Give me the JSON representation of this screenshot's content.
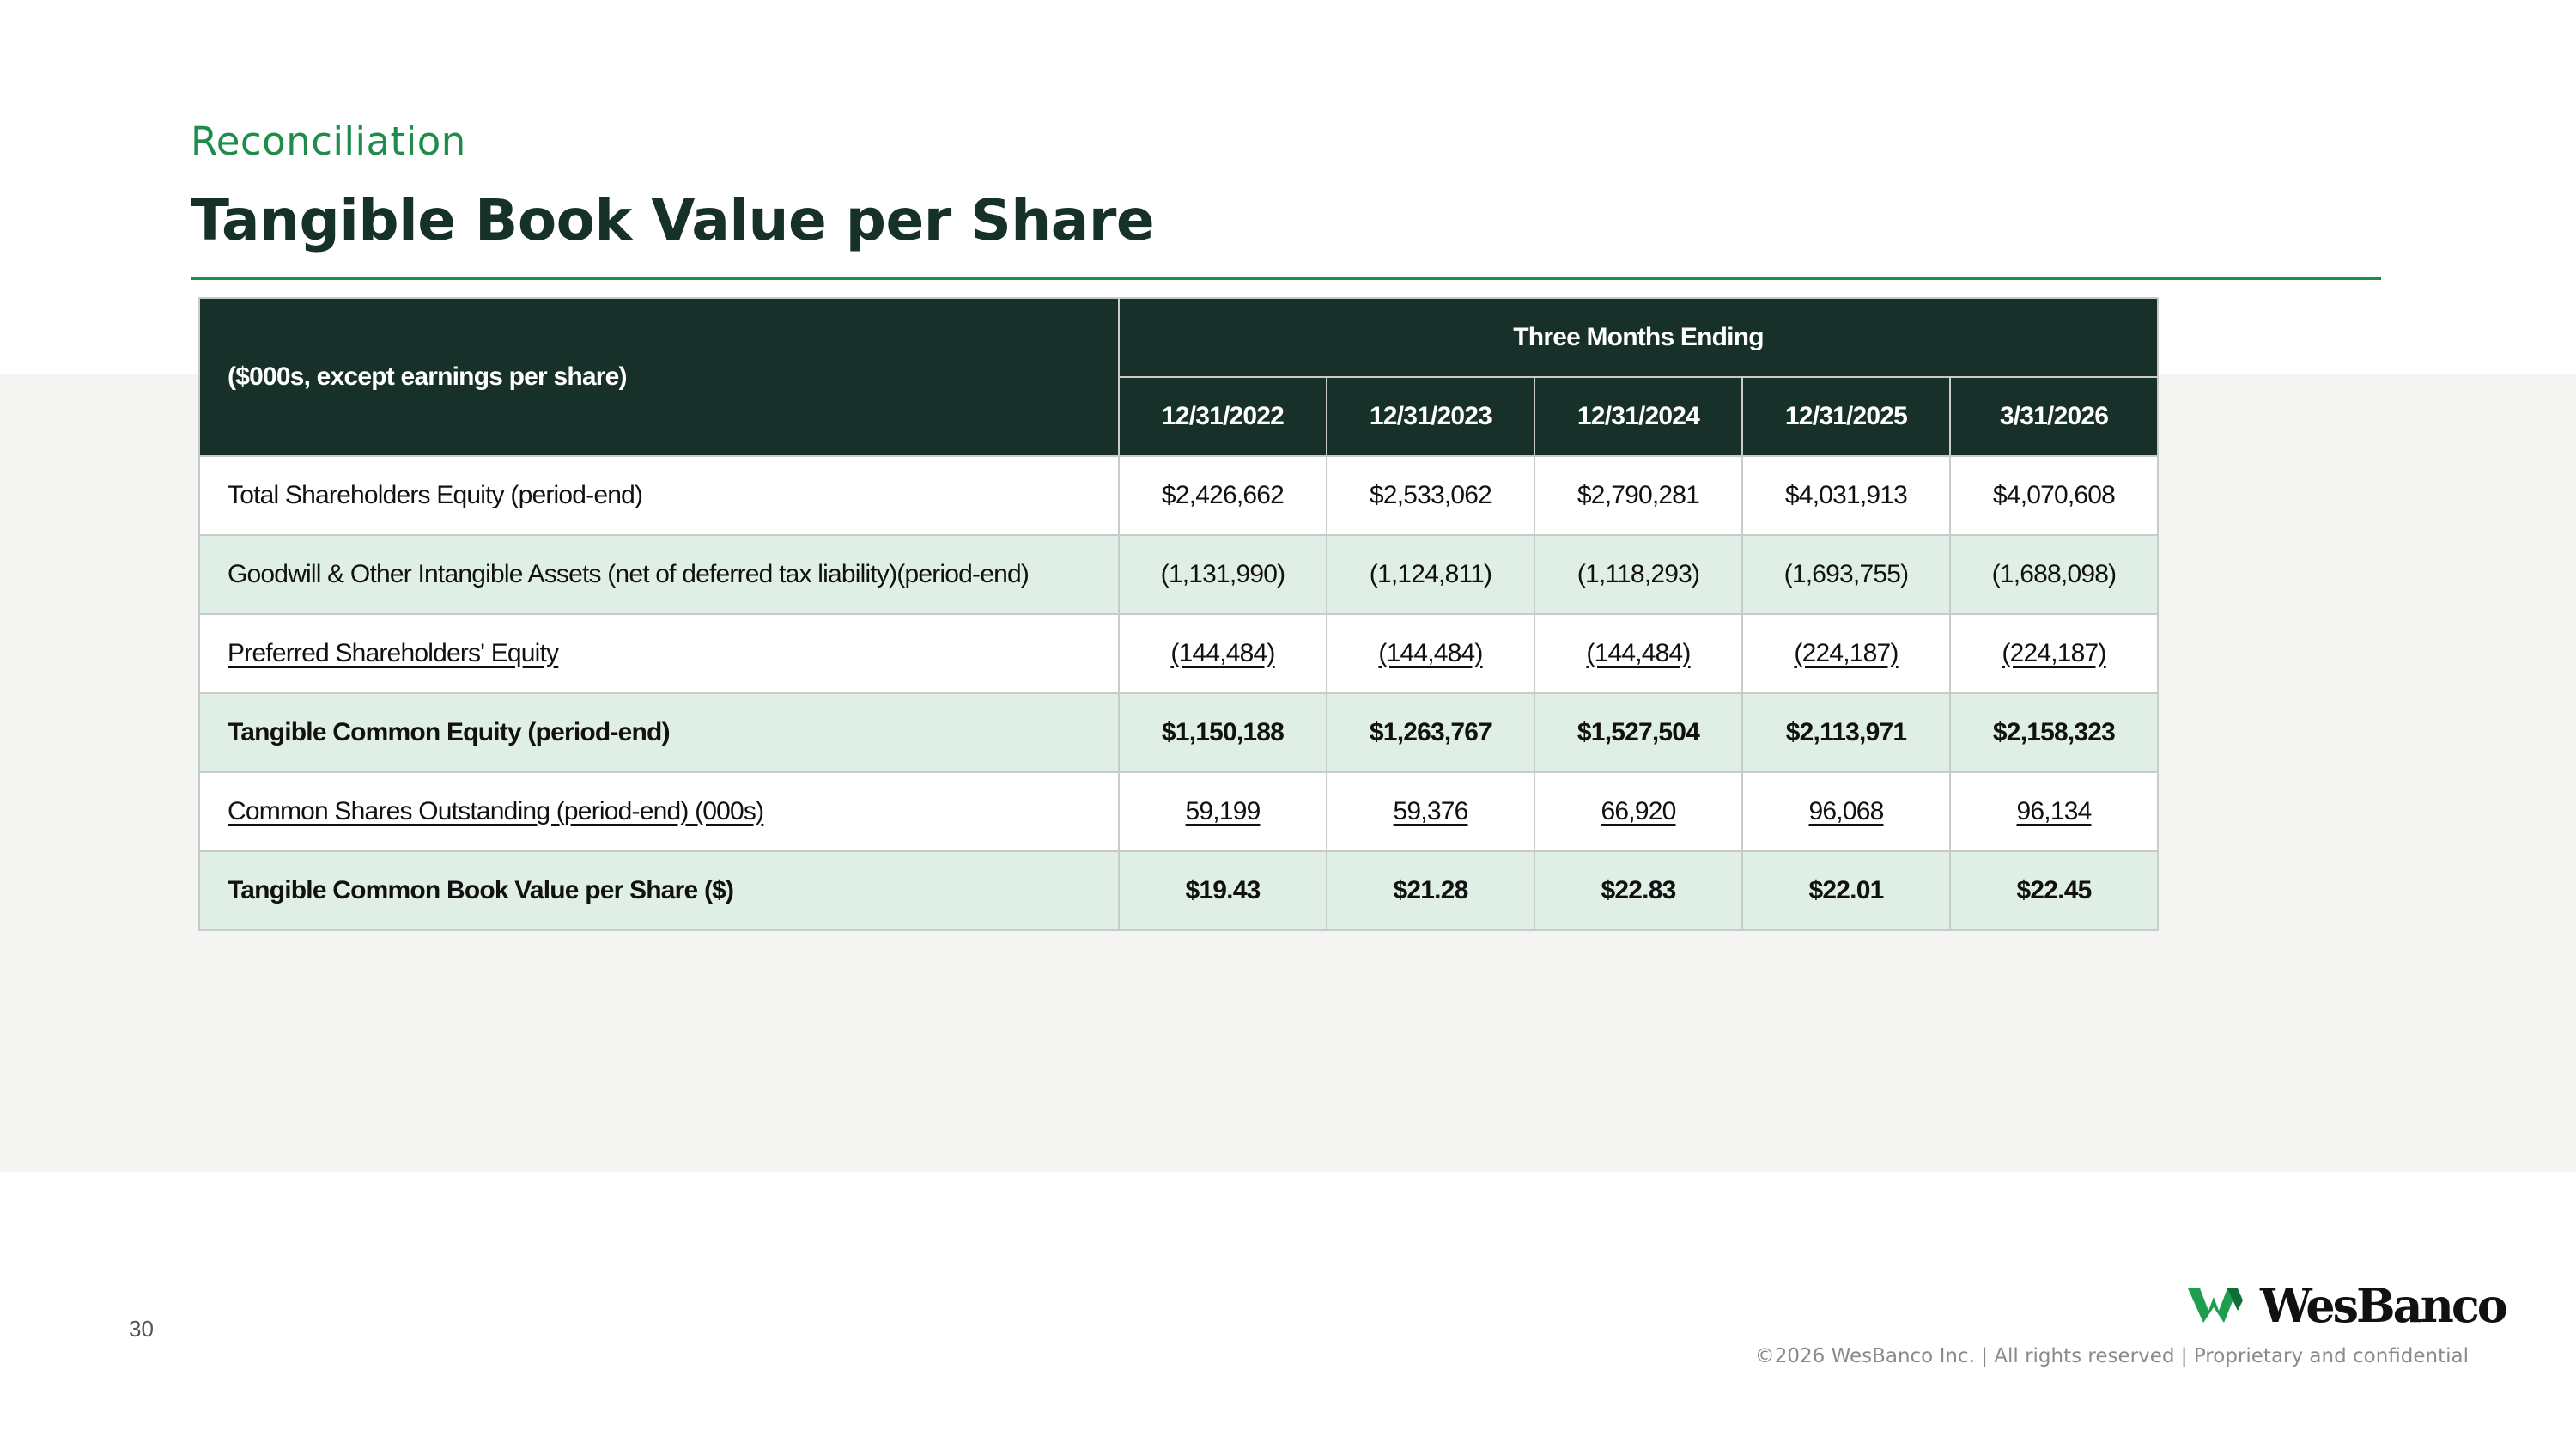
{
  "header": {
    "subtitle": "Reconciliation",
    "title": "Tangible Book Value per Share"
  },
  "table": {
    "corner_label": "($000s, except earnings per share)",
    "group_header": "Three Months Ending",
    "columns": [
      "12/31/2022",
      "12/31/2023",
      "12/31/2024",
      "12/31/2025",
      "3/31/2026"
    ],
    "rows": [
      {
        "label": "Total Shareholders Equity (period-end)",
        "values": [
          "$2,426,662",
          "$2,533,062",
          "$2,790,281",
          "$4,031,913",
          "$4,070,608"
        ]
      },
      {
        "label": "Goodwill & Other Intangible Assets (net of deferred tax liability)(period-end)",
        "values": [
          "(1,131,990)",
          "(1,124,811)",
          "(1,118,293)",
          "(1,693,755)",
          "(1,688,098)"
        ]
      },
      {
        "label": "Preferred Shareholders' Equity",
        "values": [
          "(144,484)",
          "(144,484)",
          "(144,484)",
          "(224,187)",
          "(224,187)"
        ]
      },
      {
        "label": "Tangible Common Equity (period-end)",
        "values": [
          "$1,150,188",
          "$1,263,767",
          "$1,527,504",
          "$2,113,971",
          "$2,158,323"
        ]
      },
      {
        "label": "Common Shares Outstanding (period-end) (000s)",
        "values": [
          "59,199",
          "59,376",
          "66,920",
          "96,068",
          "96,134"
        ]
      },
      {
        "label": "Tangible Common Book Value per Share ($)",
        "values": [
          "$19.43",
          "$21.28",
          "$22.83",
          "$22.01",
          "$22.45"
        ]
      }
    ]
  },
  "footer": {
    "page_number": "30",
    "logo_text": "WesBanco",
    "copyright": "©2026 WesBanco Inc.  |  All rights reserved  |  Proprietary and confidential"
  },
  "colors": {
    "accent_green": "#1e8c4a",
    "header_dark": "#18302a",
    "row_shade": "#e0efe6"
  }
}
